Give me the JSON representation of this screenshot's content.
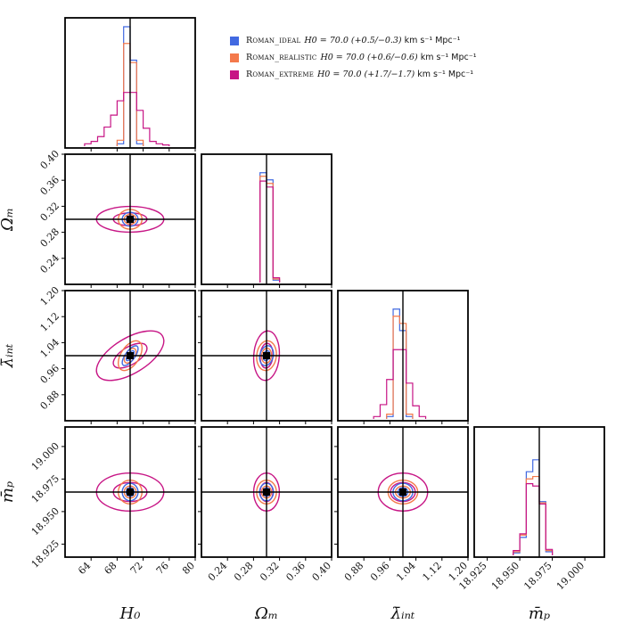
{
  "legend": [
    {
      "name": "Roman_ideal",
      "value": "H0 = 70.0 (+0.5/−0.3)",
      "unit": "km s⁻¹ Mpc⁻¹",
      "color": "#4169e1"
    },
    {
      "name": "Roman_realistic",
      "value": "H0 = 70.0 (+0.6/−0.6)",
      "unit": "km s⁻¹ Mpc⁻¹",
      "color": "#f4794b"
    },
    {
      "name": "Roman_extreme",
      "value": "H0 = 70.0 (+1.7/−1.7)",
      "unit": "km s⁻¹ Mpc⁻¹",
      "color": "#c71585"
    }
  ],
  "chart_data": {
    "type": "corner",
    "parameters": [
      {
        "key": "H0",
        "label": "H₀",
        "range": [
          60,
          80
        ],
        "ticks": [
          "64",
          "68",
          "72",
          "76",
          "80"
        ],
        "truth": 70.0
      },
      {
        "key": "Om",
        "label": "Ωₘ",
        "range": [
          0.2,
          0.4
        ],
        "ticks": [
          "0.24",
          "0.28",
          "0.32",
          "0.36",
          "0.40"
        ],
        "truth": 0.3
      },
      {
        "key": "lam",
        "label": "λ̄ᵢₙₜ",
        "range": [
          0.8,
          1.2
        ],
        "ticks": [
          "0.88",
          "0.96",
          "1.04",
          "1.12",
          "1.20"
        ],
        "truth": 1.0
      },
      {
        "key": "mp",
        "label": "m̄ₚ",
        "range": [
          18.915,
          19.015
        ],
        "ticks": [
          "18.925",
          "18.950",
          "18.975",
          "19.000"
        ],
        "truth": 18.965
      }
    ],
    "y_axis_ticks": {
      "Om": [
        "0.24",
        "0.28",
        "0.32",
        "0.36",
        "0.40"
      ],
      "lam": [
        "0.88",
        "0.96",
        "1.04",
        "1.12",
        "1.20"
      ],
      "mp": [
        "18.925",
        "18.950",
        "18.975",
        "19.000"
      ]
    },
    "histograms": {
      "H0": {
        "Roman_ideal": {
          "edges": [
            68,
            69,
            70,
            71,
            72
          ],
          "counts": [
            0.02,
            1.0,
            0.72,
            0.02
          ]
        },
        "Roman_realistic": {
          "edges": [
            68,
            69,
            70,
            71,
            72
          ],
          "counts": [
            0.05,
            0.86,
            0.7,
            0.05
          ]
        },
        "Roman_extreme": {
          "edges": [
            63,
            64,
            65,
            66,
            67,
            68,
            69,
            70,
            71,
            72,
            73,
            74,
            75,
            76
          ],
          "counts": [
            0.02,
            0.04,
            0.08,
            0.16,
            0.26,
            0.38,
            0.45,
            0.45,
            0.3,
            0.15,
            0.04,
            0.02,
            0.01
          ]
        }
      },
      "Om": {
        "Roman_ideal": {
          "edges": [
            0.29,
            0.3,
            0.31,
            0.32
          ],
          "counts": [
            0.92,
            0.86,
            0.02
          ]
        },
        "Roman_realistic": {
          "edges": [
            0.29,
            0.3,
            0.31,
            0.32
          ],
          "counts": [
            0.89,
            0.83,
            0.03
          ]
        },
        "Roman_extreme": {
          "edges": [
            0.29,
            0.3,
            0.31,
            0.32
          ],
          "counts": [
            0.85,
            0.8,
            0.04
          ]
        }
      },
      "lam": {
        "Roman_ideal": {
          "edges": [
            0.95,
            0.97,
            0.99,
            1.01,
            1.03
          ],
          "counts": [
            0.02,
            0.92,
            0.74,
            0.02
          ]
        },
        "Roman_realistic": {
          "edges": [
            0.95,
            0.97,
            0.99,
            1.01,
            1.03
          ],
          "counts": [
            0.04,
            0.86,
            0.8,
            0.04
          ]
        },
        "Roman_extreme": {
          "edges": [
            0.91,
            0.93,
            0.95,
            0.97,
            0.99,
            1.01,
            1.03,
            1.05,
            1.07
          ],
          "counts": [
            0.02,
            0.12,
            0.33,
            0.58,
            0.58,
            0.3,
            0.11,
            0.02
          ]
        }
      },
      "mp": {
        "Roman_ideal": {
          "edges": [
            18.945,
            18.95,
            18.955,
            18.96,
            18.965,
            18.97,
            18.975
          ],
          "counts": [
            0.02,
            0.15,
            0.7,
            0.8,
            0.45,
            0.03
          ]
        },
        "Roman_realistic": {
          "edges": [
            18.945,
            18.95,
            18.955,
            18.96,
            18.965,
            18.97,
            18.975
          ],
          "counts": [
            0.03,
            0.17,
            0.64,
            0.66,
            0.44,
            0.04
          ]
        },
        "Roman_extreme": {
          "edges": [
            18.945,
            18.95,
            18.955,
            18.96,
            18.965,
            18.97,
            18.975
          ],
          "counts": [
            0.04,
            0.18,
            0.6,
            0.58,
            0.43,
            0.05
          ]
        }
      }
    },
    "contours": {
      "Roman_ideal": {
        "sigma": {
          "H0": 0.4,
          "Om": 0.0035,
          "lam": 0.01,
          "mp": 0.0022
        },
        "rho": {
          "H0-lam": 0.7,
          "Om-lam": 0.2
        }
      },
      "Roman_realistic": {
        "sigma": {
          "H0": 0.6,
          "Om": 0.005,
          "lam": 0.015,
          "mp": 0.003
        },
        "rho": {
          "H0-lam": 0.5,
          "Om-lam": 0.1
        }
      },
      "Roman_extreme": {
        "sigma": {
          "H0": 1.7,
          "Om": 0.0065,
          "lam": 0.025,
          "mp": 0.0048
        },
        "rho": {
          "H0-lam": 0.6,
          "Om-lam": 0.1
        }
      },
      "levels_sigma": [
        1,
        2
      ]
    }
  }
}
